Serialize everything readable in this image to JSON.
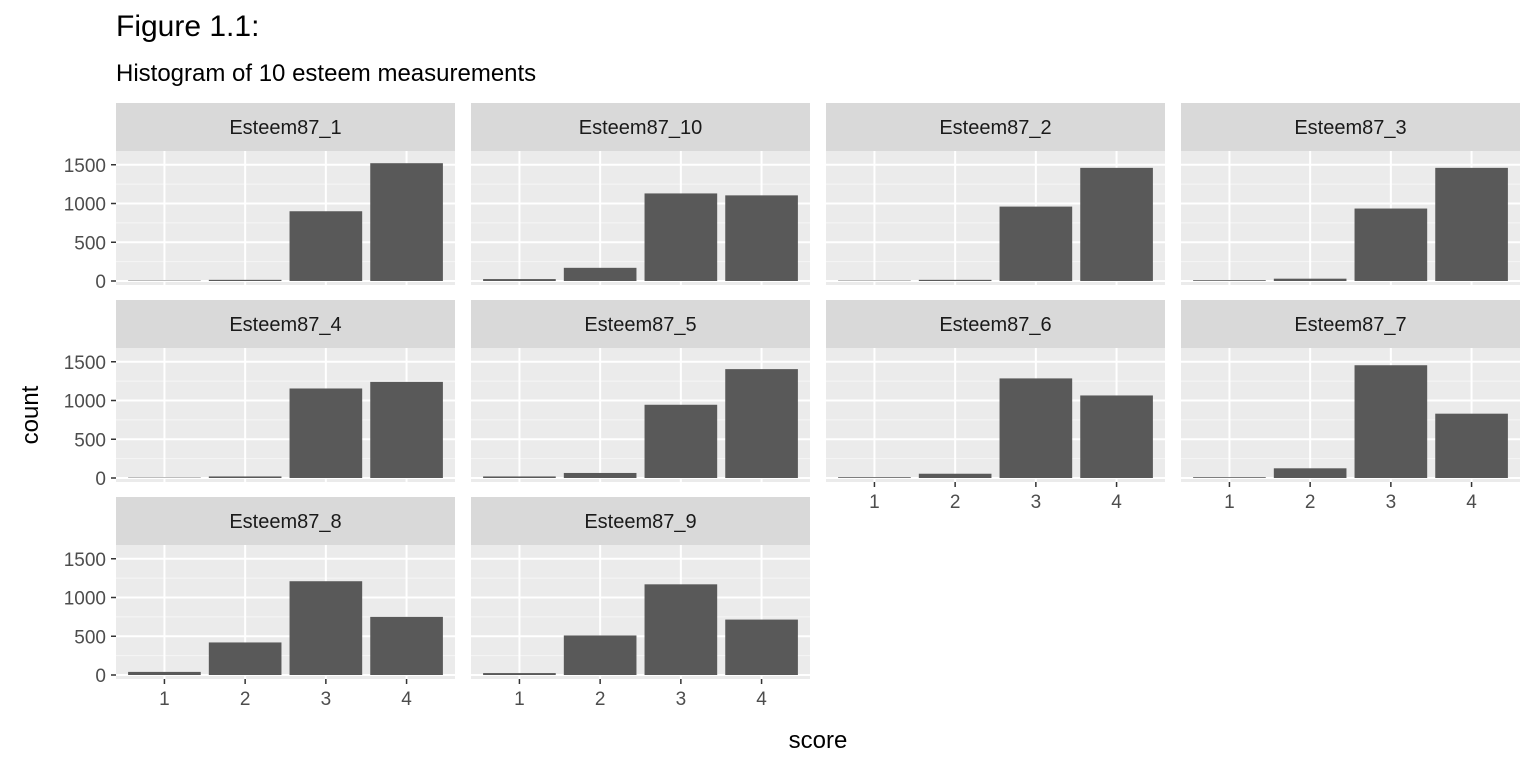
{
  "title": "Figure 1.1:",
  "subtitle": "Histogram of 10 esteem measurements",
  "chart_data": {
    "type": "bar",
    "xlabel": "score",
    "ylabel": "count",
    "ylim": [
      0,
      1600
    ],
    "y_ticks": [
      0,
      500,
      1000,
      1500
    ],
    "categories": [
      "1",
      "2",
      "3",
      "4"
    ],
    "grid": true,
    "panels": [
      {
        "name": "Esteem87_1",
        "values": [
          5,
          15,
          900,
          1520
        ]
      },
      {
        "name": "Esteem87_10",
        "values": [
          25,
          170,
          1130,
          1105
        ]
      },
      {
        "name": "Esteem87_2",
        "values": [
          5,
          15,
          960,
          1460
        ]
      },
      {
        "name": "Esteem87_3",
        "values": [
          10,
          30,
          935,
          1460
        ]
      },
      {
        "name": "Esteem87_4",
        "values": [
          5,
          20,
          1155,
          1240
        ]
      },
      {
        "name": "Esteem87_5",
        "values": [
          20,
          65,
          945,
          1405
        ]
      },
      {
        "name": "Esteem87_6",
        "values": [
          10,
          55,
          1285,
          1065
        ]
      },
      {
        "name": "Esteem87_7",
        "values": [
          10,
          125,
          1455,
          830
        ]
      },
      {
        "name": "Esteem87_8",
        "values": [
          40,
          420,
          1210,
          750
        ]
      },
      {
        "name": "Esteem87_9",
        "values": [
          25,
          510,
          1170,
          715
        ]
      }
    ]
  }
}
